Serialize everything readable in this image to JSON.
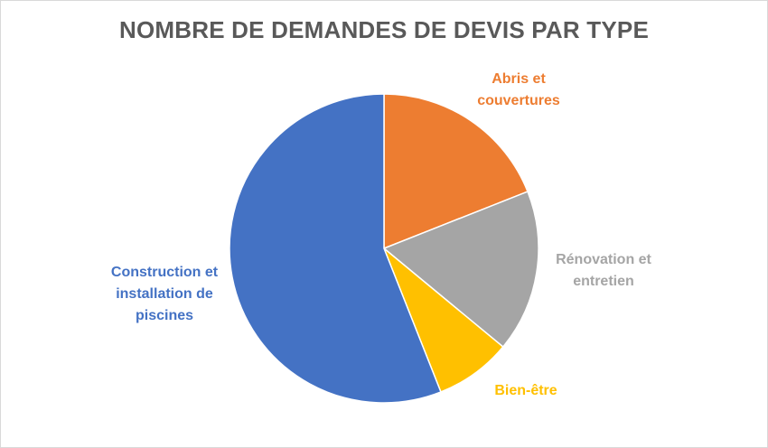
{
  "chart_data": {
    "type": "pie",
    "title": "NOMBRE DE DEMANDES DE DEVIS PAR TYPE",
    "categories": [
      "Abris et couvertures",
      "Rénovation et entretien",
      "Bien-être",
      "Construction et installation de piscines"
    ],
    "values": [
      19,
      17,
      8,
      56
    ],
    "colors": [
      "#ED7D31",
      "#A5A5A5",
      "#FFC000",
      "#4472C4"
    ],
    "label_lines": [
      [
        "Abris et",
        "couvertures"
      ],
      [
        "Rénovation et",
        "entretien"
      ],
      [
        "Bien-être"
      ],
      [
        "Construction et",
        "installation de",
        "piscines"
      ]
    ],
    "start_angle_deg": 0,
    "direction": "clockwise",
    "legend": "none",
    "data_labels": "category-name"
  }
}
